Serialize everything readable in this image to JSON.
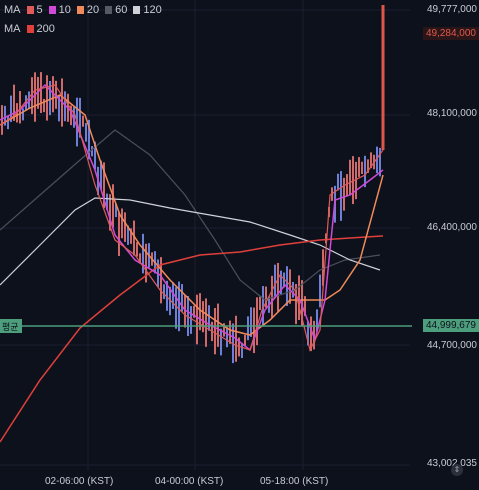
{
  "legend_ma1": {
    "label": "MA",
    "items": [
      {
        "value": "5",
        "color": "#e05a5a"
      },
      {
        "value": "10",
        "color": "#d04ad8"
      },
      {
        "value": "20",
        "color": "#f08a5a"
      },
      {
        "value": "60",
        "color": "#555a66"
      },
      {
        "value": "120",
        "color": "#cfd2d8"
      }
    ]
  },
  "legend_ma2": {
    "label": "MA",
    "items": [
      {
        "value": "200",
        "color": "#e0403a"
      }
    ]
  },
  "price_axis": {
    "ticks": [
      "49,777,000",
      "48,100,000",
      "46,400,000",
      "44,700,000",
      "43,002,035"
    ],
    "current_price": "49,284,000",
    "current_color": "#d9453a",
    "avg_price": "44,999,679",
    "avg_color": "#4d9e7c"
  },
  "avg_line_label": "평균",
  "time_axis": [
    "02-06:00 (KST)",
    "04-00:00 (KST)",
    "05-18:00 (KST)"
  ],
  "collapse_icon_glyph": "⇕"
}
